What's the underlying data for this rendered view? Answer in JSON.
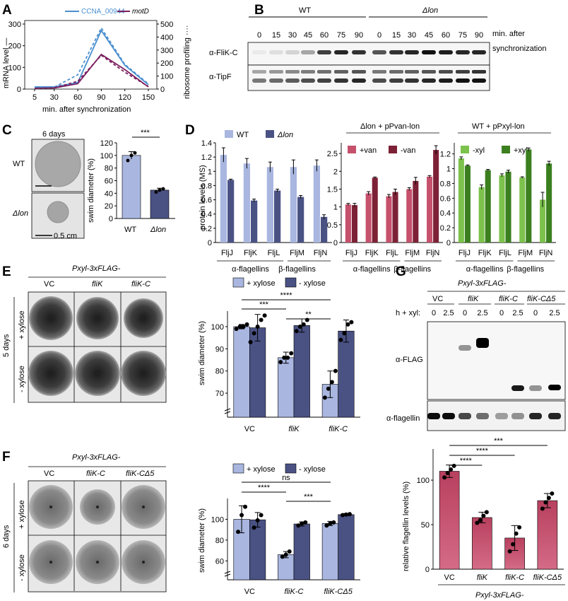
{
  "panels": {
    "A": "A",
    "B": "B",
    "C": "C",
    "D": "D",
    "E": "E",
    "F": "F",
    "G": "G"
  },
  "A": {
    "legend": [
      "CCNA_00944",
      "motD"
    ],
    "ylabel_left": "mRNA level —",
    "ylabel_right": "ribosome profiling ····",
    "xlabel": "min. after synchronization",
    "xticks": [
      "5",
      "30",
      "60",
      "90",
      "120",
      "150"
    ],
    "yticks_left": [
      "0",
      "100",
      "200",
      "300"
    ],
    "yticks_right": [
      "0",
      "100",
      "200",
      "300",
      "400",
      "500"
    ]
  },
  "B": {
    "wt_label": "WT",
    "lon_label": "Δlon",
    "times": [
      "0",
      "15",
      "30",
      "45",
      "60",
      "75",
      "90"
    ],
    "time_caption": [
      "min. after",
      "synchronization"
    ],
    "row1": "α-FliK-C",
    "row2": "α-TipF"
  },
  "C": {
    "days": "6 days",
    "wt": "WT",
    "lon": "Δlon",
    "scale": "0.5 cm",
    "ylabel": "swim diameter (%)",
    "yticks": [
      "0",
      "20",
      "40",
      "60",
      "80",
      "100",
      "120"
    ],
    "xticks": [
      "WT",
      "Δlon"
    ],
    "sig": "***"
  },
  "D": {
    "ylabel": "protein levels (MS)",
    "legend1": [
      "WT",
      "Δlon"
    ],
    "header2": "Δlon + pPvan-lon",
    "legend2": [
      "+van",
      "-van"
    ],
    "header3": "WT + pPxyl-lon",
    "legend3": [
      "-xyl",
      "+xyl"
    ],
    "yticks1": [
      "0",
      "0.2",
      "0.4",
      "0.6",
      "0.8",
      "1",
      "1.2",
      "1.4"
    ],
    "yticks2": [
      "0",
      "0.5",
      "1",
      "1.5",
      "2",
      "2.5"
    ],
    "yticks3": [
      "0",
      "0.2",
      "0.4",
      "0.6",
      "0.8",
      "1",
      "1.2"
    ],
    "xticks": [
      "FljJ",
      "FljK",
      "FljL",
      "FljM",
      "FljN"
    ],
    "alpha": "α-flagellins",
    "beta": "β-flagellins"
  },
  "E": {
    "header": "Pxyl-3xFLAG-",
    "cols": [
      "VC",
      "fliK",
      "fliK-C"
    ],
    "days": "5 days",
    "rows": [
      "+ xylose",
      "- xylose"
    ],
    "legend": [
      "+ xylose",
      "- xylose"
    ],
    "ylabel": "swim diameter (%)",
    "yticks": [
      "70",
      "80",
      "90",
      "100"
    ],
    "xticks": [
      "VC",
      "fliK",
      "fliK-C"
    ],
    "sig": [
      "****",
      "***",
      "**"
    ]
  },
  "F": {
    "header": "Pxyl-3xFLAG-",
    "cols": [
      "VC",
      "fliK-C",
      "fliK-CΔ5"
    ],
    "days": "6 days",
    "rows": [
      "+ xylose",
      "- xylose"
    ],
    "legend": [
      "+ xylose",
      "- xylose"
    ],
    "ylabel": "swim diameter (%)",
    "yticks": [
      "60",
      "80",
      "100"
    ],
    "xticks": [
      "VC",
      "fliK-C",
      "fliK-CΔ5"
    ],
    "sig": [
      "ns",
      "****",
      "***"
    ]
  },
  "G": {
    "header": "Pxyl-3xFLAG-",
    "cols": [
      "VC",
      "fliK",
      "fliK-C",
      "fliK-CΔ5"
    ],
    "hxyl": "h + xyl:",
    "times": [
      "0",
      "2.5",
      "0",
      "2.5",
      "0",
      "2.5",
      "0",
      "2.5"
    ],
    "row1": "α-FLAG",
    "row2": "α-flagellin",
    "ylabel": "relative flagellin levels (%)",
    "yticks": [
      "0",
      "50",
      "100"
    ],
    "xticks": [
      "VC",
      "fliK",
      "fliK-C",
      "fliK-CΔ5"
    ],
    "footer": "Pxyl-3xFLAG-",
    "sig": [
      "***",
      "****",
      "****"
    ]
  },
  "colors": {
    "blue": "#4a8fd0",
    "purple": "#7b1f5e",
    "light": "#a9b6e0",
    "dark": "#4a5284",
    "pink": "#c5516d",
    "maroon": "#7d2136",
    "lgreen": "#7cc24c",
    "dgreen": "#3b7f1f",
    "grad": "#c44a68"
  },
  "chart_data": [
    {
      "panel": "A",
      "type": "line",
      "x": [
        5,
        30,
        60,
        90,
        120,
        150
      ],
      "series": [
        {
          "name": "CCNA_00944",
          "axis": "left",
          "values": [
            10,
            10,
            30,
            270,
            110,
            20
          ]
        },
        {
          "name": "motD",
          "axis": "left",
          "values": [
            5,
            5,
            25,
            160,
            90,
            10
          ]
        },
        {
          "name": "CCNA_00944",
          "axis": "right",
          "values": [
            10,
            15,
            110,
            470,
            190,
            40
          ]
        },
        {
          "name": "motD",
          "axis": "right",
          "values": [
            5,
            10,
            60,
            260,
            130,
            20
          ]
        }
      ],
      "xlabel": "min. after synchronization",
      "ylabel": "mRNA level",
      "y2label": "ribosome profiling",
      "ylim": [
        0,
        300
      ],
      "y2lim": [
        0,
        500
      ]
    },
    {
      "panel": "C",
      "type": "bar",
      "categories": [
        "WT",
        "Δlon"
      ],
      "values": [
        100,
        45
      ],
      "errors": [
        6,
        3
      ],
      "points": [
        [
          92,
          100,
          104
        ],
        [
          42,
          45,
          47
        ]
      ],
      "ylabel": "swim diameter (%)",
      "ylim": [
        0,
        120
      ]
    },
    {
      "panel": "D1",
      "type": "bar",
      "categories": [
        "FljJ",
        "FljK",
        "FljL",
        "FljM",
        "FljN"
      ],
      "series": [
        {
          "name": "WT",
          "values": [
            1.23,
            1.11,
            1.06,
            1.06,
            1.08
          ],
          "errors": [
            0.1,
            0.07,
            0.07,
            0.1,
            0.08
          ]
        },
        {
          "name": "Δlon",
          "values": [
            0.88,
            0.59,
            0.73,
            0.64,
            0.36
          ],
          "errors": [
            0.01,
            0.02,
            0.02,
            0.02,
            0.03
          ]
        }
      ],
      "ylabel": "protein levels (MS)",
      "ylim": [
        0,
        1.4
      ]
    },
    {
      "panel": "D2",
      "type": "bar",
      "categories": [
        "FljJ",
        "FljK",
        "FljL",
        "FljM",
        "FljN"
      ],
      "series": [
        {
          "name": "+van",
          "values": [
            1.07,
            1.38,
            1.3,
            1.5,
            1.85
          ],
          "errors": [
            0.03,
            0.05,
            0.05,
            0.04,
            0.03
          ]
        },
        {
          "name": "-van",
          "values": [
            1.05,
            1.82,
            1.42,
            1.73,
            2.6
          ],
          "errors": [
            0.05,
            0.02,
            0.08,
            0.1,
            0.12
          ]
        }
      ],
      "ylim": [
        0,
        2.8
      ]
    },
    {
      "panel": "D3",
      "type": "bar",
      "categories": [
        "FljJ",
        "FljK",
        "FljL",
        "FljM",
        "FljN"
      ],
      "series": [
        {
          "name": "-xyl",
          "values": [
            1.14,
            0.75,
            0.91,
            0.88,
            0.58
          ],
          "errors": [
            0.02,
            0.03,
            0.02,
            0.01,
            0.1
          ]
        },
        {
          "name": "+xyl",
          "values": [
            1.04,
            0.98,
            0.96,
            1.26,
            1.07
          ],
          "errors": [
            0.01,
            0.01,
            0.02,
            0.02,
            0.03
          ]
        }
      ],
      "ylim": [
        0,
        1.35
      ]
    },
    {
      "panel": "E",
      "type": "bar",
      "categories": [
        "VC",
        "fliK",
        "fliK-C"
      ],
      "series": [
        {
          "name": "+ xylose",
          "values": [
            100,
            86,
            74
          ],
          "errors": [
            1,
            2.5,
            6
          ]
        },
        {
          "name": "- xylose",
          "values": [
            99.5,
            100.5,
            98
          ],
          "errors": [
            6,
            3,
            5
          ]
        }
      ],
      "ylabel": "swim diameter (%)",
      "ylim": [
        63,
        107
      ]
    },
    {
      "panel": "F",
      "type": "bar",
      "categories": [
        "VC",
        "fliK-C",
        "fliK-CΔ5"
      ],
      "series": [
        {
          "name": "+ xylose",
          "values": [
            100,
            66,
            96
          ],
          "errors": [
            13,
            3,
            2
          ]
        },
        {
          "name": "- xylose",
          "values": [
            99.5,
            95.5,
            104.5
          ],
          "errors": [
            7,
            2,
            1
          ]
        }
      ],
      "ylabel": "swim diameter (%)",
      "ylim": [
        50,
        120
      ]
    },
    {
      "panel": "G",
      "type": "bar",
      "categories": [
        "VC",
        "fliK",
        "fliK-C",
        "fliK-CΔ5"
      ],
      "values": [
        110,
        58,
        35,
        77
      ],
      "errors": [
        7,
        6,
        14,
        8
      ],
      "points": [
        [
          103,
          108,
          112,
          116
        ],
        [
          52,
          55,
          60,
          64
        ],
        [
          20,
          28,
          40,
          47
        ],
        [
          68,
          75,
          80,
          85
        ]
      ],
      "ylabel": "relative flagellin levels (%)",
      "ylim": [
        0,
        135
      ]
    }
  ]
}
